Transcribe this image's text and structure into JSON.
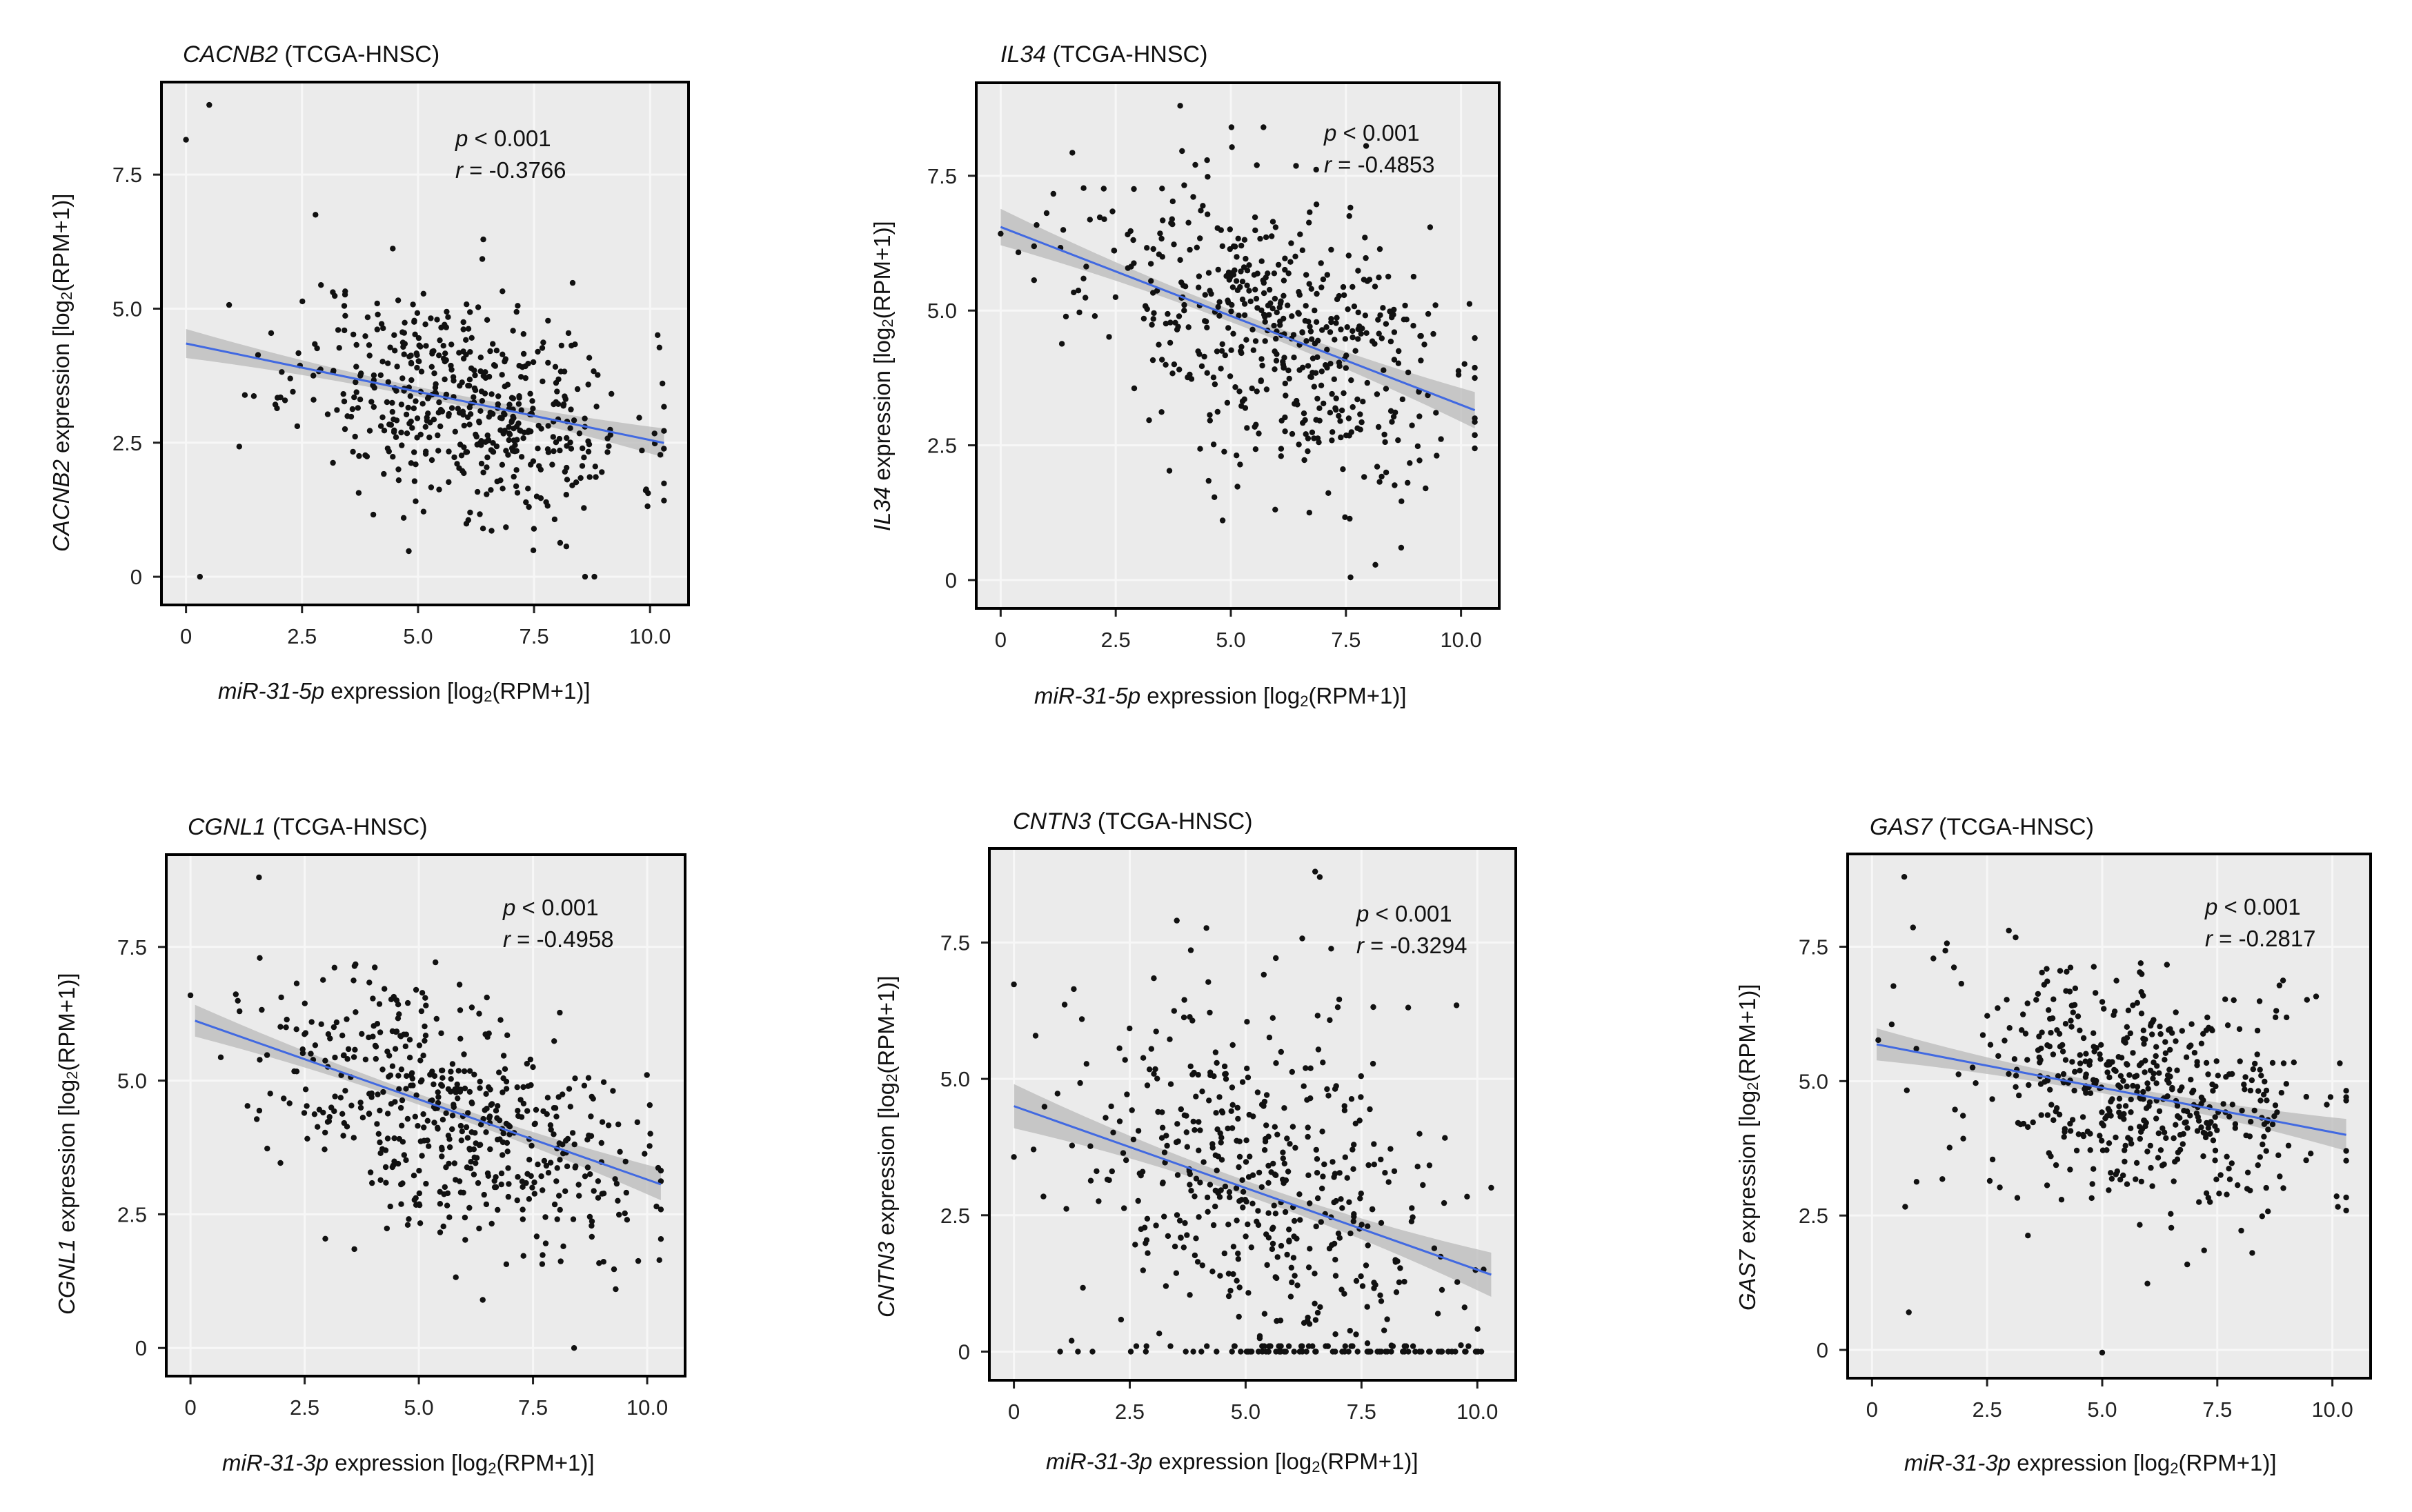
{
  "colors": {
    "panel_bg": "#ebebeb",
    "grid": "#f7f7f7",
    "points": "#111111",
    "fit_line": "#4169e1",
    "ci_band": "#b9b9b9"
  },
  "chart_data": [
    {
      "type": "scatter",
      "title": "CACNB2 (TCGA-HNSC)",
      "gene": "CACNB2",
      "cohort": "(TCGA-HNSC)",
      "mirna": "miR-31-5p",
      "xlabel_rest": "expression [log",
      "xlabel_unit": "(RPM+1)]",
      "ylabel_rest": "expression [log",
      "ylabel_unit": "(RPM+1)]",
      "log_base": "2",
      "p_label": "p",
      "p_value": "< 0.001",
      "r_label": "r",
      "r_value": "= -0.3766",
      "xlim": [
        -0.5,
        10.8
      ],
      "ylim": [
        -0.5,
        9.2
      ],
      "xticks": [
        0,
        2.5,
        5.0,
        7.5,
        10.0
      ],
      "xtick_labels": [
        "0",
        "2.5",
        "5.0",
        "7.5",
        "10.0"
      ],
      "yticks": [
        0,
        2.5,
        5.0,
        7.5
      ],
      "ytick_labels": [
        "0",
        "2.5",
        "5.0",
        "7.5"
      ],
      "fit": {
        "intercept": 4.35,
        "slope": -0.18,
        "x_range": [
          0,
          10.3
        ],
        "ci": 0.2
      },
      "n_points": 520,
      "x_center": 6.0,
      "x_spread": 1.8,
      "noise": 1.0,
      "seed": 11,
      "extra_points": [
        [
          0,
          8.15
        ],
        [
          0.5,
          8.8
        ],
        [
          0.3,
          0
        ],
        [
          8.6,
          0
        ],
        [
          8.8,
          0
        ]
      ]
    },
    {
      "type": "scatter",
      "title": "IL34 (TCGA-HNSC)",
      "gene": "IL34",
      "cohort": "(TCGA-HNSC)",
      "mirna": "miR-31-5p",
      "xlabel_rest": "expression [log",
      "xlabel_unit": "(RPM+1)]",
      "ylabel_rest": "expression  [log",
      "ylabel_unit": "(RPM+1)]",
      "log_base": "2",
      "p_label": "p",
      "p_value": "< 0.001",
      "r_label": "r",
      "r_value": "= -0.4853",
      "xlim": [
        -0.5,
        10.8
      ],
      "ylim": [
        -0.5,
        9.2
      ],
      "xticks": [
        0,
        2.5,
        5.0,
        7.5,
        10.0
      ],
      "xtick_labels": [
        "0",
        "2.5",
        "5.0",
        "7.5",
        "10.0"
      ],
      "yticks": [
        0,
        2.5,
        5.0,
        7.5
      ],
      "ytick_labels": [
        "0",
        "2.5",
        "5.0",
        "7.5"
      ],
      "fit": {
        "intercept": 6.55,
        "slope": -0.33,
        "x_range": [
          0,
          10.3
        ],
        "ci": 0.25
      },
      "n_points": 520,
      "x_center": 5.8,
      "x_spread": 2.0,
      "noise": 1.3,
      "seed": 23,
      "extra_points": [
        [
          3.9,
          8.8
        ],
        [
          7.6,
          0.05
        ],
        [
          8.7,
          0.6
        ]
      ]
    },
    {
      "type": "scatter",
      "title": "CGNL1 (TCGA-HNSC)",
      "gene": "CGNL1",
      "cohort": "(TCGA-HNSC)",
      "mirna": "miR-31-3p",
      "xlabel_rest": "expression [log",
      "xlabel_unit": "(RPM+1)]",
      "ylabel_rest": "expression [log",
      "ylabel_unit": "(RPM+1)]",
      "log_base": "2",
      "p_label": "p",
      "p_value": "< 0.001",
      "r_label": "r",
      "r_value": "= -0.4958",
      "xlim": [
        -0.5,
        10.8
      ],
      "ylim": [
        -0.5,
        9.2
      ],
      "xticks": [
        0,
        2.5,
        5.0,
        7.5,
        10.0
      ],
      "xtick_labels": [
        "0",
        "2.5",
        "5.0",
        "7.5",
        "10.0"
      ],
      "yticks": [
        0,
        2.5,
        5.0,
        7.5
      ],
      "ytick_labels": [
        "0",
        "2.5",
        "5.0",
        "7.5"
      ],
      "fit": {
        "intercept": 6.15,
        "slope": -0.3,
        "x_range": [
          0.1,
          10.3
        ],
        "ci": 0.22
      },
      "n_points": 520,
      "x_center": 5.8,
      "x_spread": 2.0,
      "noise": 1.1,
      "seed": 37,
      "extra_points": [
        [
          1.5,
          8.8
        ],
        [
          8.4,
          0
        ],
        [
          6.4,
          0.9
        ]
      ]
    },
    {
      "type": "scatter",
      "title": "CNTN3 (TCGA-HNSC)",
      "gene": "CNTN3",
      "cohort": "(TCGA-HNSC)",
      "mirna": "miR-31-3p",
      "xlabel_rest": "expression [log",
      "xlabel_unit": "(RPM+1)]",
      "ylabel_rest": "expression [log",
      "ylabel_unit": "(RPM+1)]",
      "log_base": "2",
      "p_label": "p",
      "p_value": "< 0.001",
      "r_label": "r",
      "r_value": "= -0.3294",
      "xlim": [
        -0.5,
        10.8
      ],
      "ylim": [
        -0.5,
        9.2
      ],
      "xticks": [
        0,
        2.5,
        5.0,
        7.5,
        10.0
      ],
      "xtick_labels": [
        "0",
        "2.5",
        "5.0",
        "7.5",
        "10.0"
      ],
      "yticks": [
        0,
        2.5,
        5.0,
        7.5
      ],
      "ytick_labels": [
        "0",
        "2.5",
        "5.0",
        "7.5"
      ],
      "fit": {
        "intercept": 4.5,
        "slope": -0.3,
        "x_range": [
          0,
          10.3
        ],
        "ci": 0.3
      },
      "n_points": 470,
      "x_center": 5.5,
      "x_spread": 2.2,
      "noise": 1.8,
      "seed": 53,
      "zero_row": {
        "count": 70,
        "x_min": 0.5,
        "x_max": 10.2
      },
      "extra_points": [
        [
          6.5,
          8.8
        ],
        [
          6.6,
          8.7
        ]
      ]
    },
    {
      "type": "scatter",
      "title": "GAS7 (TCGA-HNSC)",
      "gene": "GAS7",
      "cohort": "(TCGA-HNSC)",
      "mirna": "miR-31-3p",
      "xlabel_rest": "expression [log",
      "xlabel_unit": "(RPM+1)]",
      "ylabel_rest": "expression  [log",
      "ylabel_unit": "(RPM+1)]",
      "log_base": "2",
      "p_label": "p",
      "p_value": "< 0.001",
      "r_label": "r",
      "r_value": "= -0.2817",
      "xlim": [
        -0.5,
        10.8
      ],
      "ylim": [
        -0.5,
        9.2
      ],
      "xticks": [
        0,
        2.5,
        5.0,
        7.5,
        10.0
      ],
      "xtick_labels": [
        "0",
        "2.5",
        "5.0",
        "7.5",
        "10.0"
      ],
      "yticks": [
        0,
        2.5,
        5.0,
        7.5
      ],
      "ytick_labels": [
        "0",
        "2.5",
        "5.0",
        "7.5"
      ],
      "fit": {
        "intercept": 5.7,
        "slope": -0.165,
        "x_range": [
          0.1,
          10.3
        ],
        "ci": 0.22
      },
      "n_points": 520,
      "x_center": 5.8,
      "x_spread": 2.0,
      "noise": 1.1,
      "seed": 71,
      "extra_points": [
        [
          0.7,
          8.8
        ],
        [
          0.8,
          0.7
        ],
        [
          5.0,
          -0.05
        ]
      ]
    }
  ]
}
